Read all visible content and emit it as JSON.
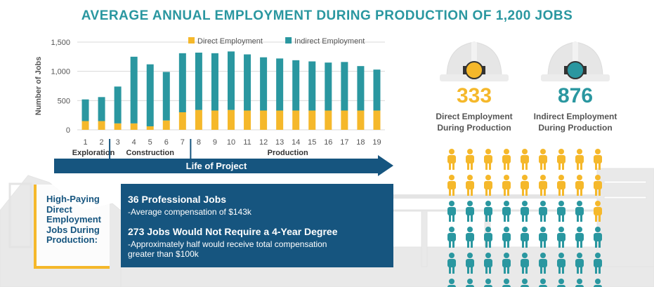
{
  "title": "AVERAGE ANNUAL EMPLOYMENT DURING PRODUCTION OF 1,200 JOBS",
  "colors": {
    "direct": "#f5b82b",
    "indirect": "#2a97a0",
    "navy": "#16557f",
    "axis_text": "#555555"
  },
  "chart_data": {
    "type": "bar",
    "stacked": true,
    "categories": [
      "1",
      "2",
      "3",
      "4",
      "5",
      "6",
      "7",
      "8",
      "9",
      "10",
      "11",
      "12",
      "13",
      "14",
      "15",
      "16",
      "17",
      "18",
      "19"
    ],
    "series": [
      {
        "name": "Direct Employment",
        "color": "#f5b82b",
        "values": [
          150,
          150,
          110,
          110,
          60,
          160,
          300,
          340,
          330,
          340,
          330,
          330,
          330,
          330,
          330,
          330,
          330,
          330,
          330
        ]
      },
      {
        "name": "Indirect Employment",
        "color": "#2a97a0",
        "values": [
          370,
          410,
          630,
          1140,
          1060,
          830,
          1010,
          980,
          980,
          1000,
          960,
          910,
          890,
          860,
          840,
          820,
          830,
          760,
          700
        ]
      }
    ],
    "ylabel": "Number of Jobs",
    "yticks": [
      "0",
      "500",
      "1,000",
      "1,500"
    ],
    "ylim": [
      0,
      1500
    ],
    "legend_position": "top",
    "grid": true,
    "phases": [
      "Exploration",
      "Construction",
      "Production"
    ],
    "phase_ranges": [
      [
        1,
        2
      ],
      [
        3,
        7
      ],
      [
        8,
        19
      ]
    ],
    "timeline_label": "Life of Project"
  },
  "stats": {
    "direct": {
      "value": "333",
      "label_line1": "Direct Employment",
      "label_line2": "During Production",
      "color": "#f5b82b"
    },
    "indirect": {
      "value": "876",
      "label_line1": "Indirect Employment",
      "label_line2": "During Production",
      "color": "#2a97a0"
    }
  },
  "people_grid": {
    "rows": 6,
    "cols": 9,
    "yellow_rows": 2,
    "yellow_extra_col9": 1
  },
  "high_paying": {
    "label": "High-Paying Direct Employment Jobs During Production:"
  },
  "info": {
    "h1": "36 Professional Jobs",
    "s1": "-Average compensation of $143k",
    "h2": "273 Jobs Would Not Require a 4-Year Degree",
    "s2_line1": "-Approximately half would receive total compensation",
    "s2_line2": "greater than $100k"
  }
}
